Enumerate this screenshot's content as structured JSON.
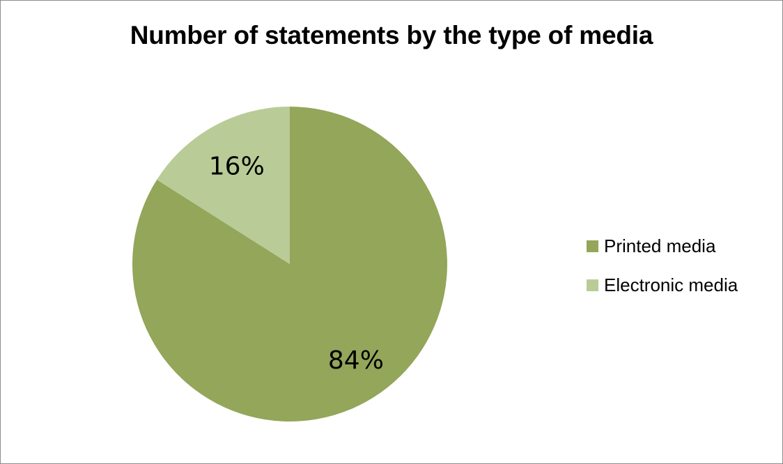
{
  "chart_data": {
    "type": "pie",
    "title": "Number of statements by the type of media",
    "slices": [
      {
        "name": "Printed media",
        "value": 84,
        "label": "84%",
        "color": "#93a65a"
      },
      {
        "name": "Electronic media",
        "value": 16,
        "label": "16%",
        "color": "#b9cc97"
      }
    ],
    "legend_position": "right"
  }
}
